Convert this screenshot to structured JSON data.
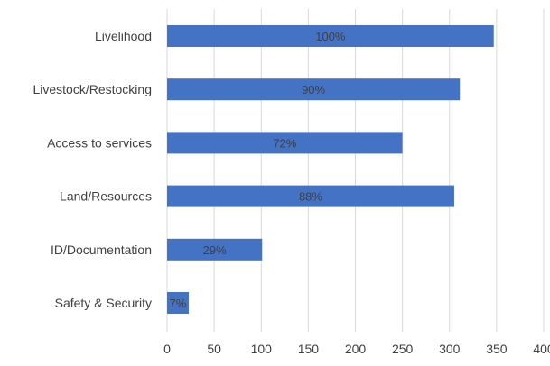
{
  "chart_data": {
    "type": "bar",
    "orientation": "horizontal",
    "categories": [
      "Livelihood",
      "Livestock/Restocking",
      "Access to services",
      "Land/Resources",
      "ID/Documentation",
      "Safety & Security"
    ],
    "values": [
      347,
      311,
      250,
      305,
      101,
      23
    ],
    "data_labels": [
      "100%",
      "90%",
      "72%",
      "88%",
      "29%",
      "7%"
    ],
    "xlim": [
      0,
      400
    ],
    "x_ticks": [
      0,
      50,
      100,
      150,
      200,
      250,
      300,
      350,
      400
    ],
    "grid": "vertical",
    "legend": "none",
    "colors": {
      "bar": "#4472c4",
      "grid": "#d9d9d9",
      "text": "#404040"
    }
  }
}
